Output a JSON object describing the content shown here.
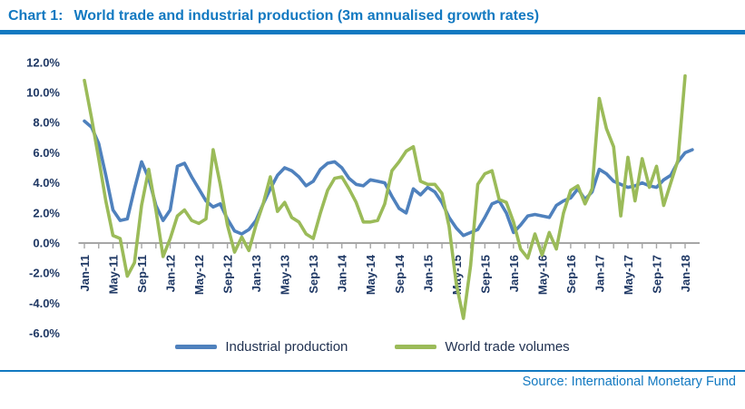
{
  "header": {
    "chart_label": "Chart 1:",
    "title": "World trade and industrial production (3m annualised growth rates)"
  },
  "source": {
    "text": "Source: International Monetary Fund"
  },
  "colors": {
    "accent_blue": "#1279C1",
    "axis_text": "#1F3864",
    "axis_line": "#A6A6A6",
    "industrial_production_line": "#4F81BD",
    "world_trade_line": "#9BBB59"
  },
  "chart_data": {
    "type": "line",
    "title": "World trade and industrial production (3m annualised growth rates)",
    "grid": false,
    "legend_position": "bottom",
    "x": [
      "Jan-11",
      "Feb-11",
      "Mar-11",
      "Apr-11",
      "May-11",
      "Jun-11",
      "Jul-11",
      "Aug-11",
      "Sep-11",
      "Oct-11",
      "Nov-11",
      "Dec-11",
      "Jan-12",
      "Feb-12",
      "Mar-12",
      "Apr-12",
      "May-12",
      "Jun-12",
      "Jul-12",
      "Aug-12",
      "Sep-12",
      "Oct-12",
      "Nov-12",
      "Dec-12",
      "Jan-13",
      "Feb-13",
      "Mar-13",
      "Apr-13",
      "May-13",
      "Jun-13",
      "Jul-13",
      "Aug-13",
      "Sep-13",
      "Oct-13",
      "Nov-13",
      "Dec-13",
      "Jan-14",
      "Feb-14",
      "Mar-14",
      "Apr-14",
      "May-14",
      "Jun-14",
      "Jul-14",
      "Aug-14",
      "Sep-14",
      "Oct-14",
      "Nov-14",
      "Dec-14",
      "Jan-15",
      "Feb-15",
      "Mar-15",
      "Apr-15",
      "May-15",
      "Jun-15",
      "Jul-15",
      "Aug-15",
      "Sep-15",
      "Oct-15",
      "Nov-15",
      "Dec-15",
      "Jan-16",
      "Feb-16",
      "Mar-16",
      "Apr-16",
      "May-16",
      "Jun-16",
      "Jul-16",
      "Aug-16",
      "Sep-16",
      "Oct-16",
      "Nov-16",
      "Dec-16",
      "Jan-17",
      "Feb-17",
      "Mar-17",
      "Apr-17",
      "May-17",
      "Jun-17",
      "Jul-17",
      "Aug-17",
      "Sep-17",
      "Oct-17",
      "Nov-17",
      "Dec-17",
      "Jan-18",
      "Feb-18"
    ],
    "x_tick_labels": [
      "Jan-11",
      "May-11",
      "Sep-11",
      "Jan-12",
      "May-12",
      "Sep-12",
      "Jan-13",
      "May-13",
      "Sep-13",
      "Jan-14",
      "May-14",
      "Sep-14",
      "Jan-15",
      "May-15",
      "Sep-15",
      "Jan-16",
      "May-16",
      "Sep-16",
      "Jan-17",
      "May-17",
      "Sep-17",
      "Jan-18"
    ],
    "y_axis": {
      "min": -6,
      "max": 12,
      "step": 2,
      "unit": "%",
      "tick_labels": [
        "12.0%",
        "10.0%",
        "8.0%",
        "6.0%",
        "4.0%",
        "2.0%",
        "0.0%",
        "-2.0%",
        "-4.0%",
        "-6.0%"
      ]
    },
    "series": [
      {
        "name": "Industrial production",
        "color": "#4F81BD",
        "values": [
          8.1,
          7.7,
          6.6,
          4.5,
          2.2,
          1.5,
          1.6,
          3.6,
          5.4,
          4.3,
          2.5,
          1.5,
          2.2,
          5.1,
          5.3,
          4.4,
          3.6,
          2.8,
          2.4,
          2.6,
          1.6,
          0.8,
          0.6,
          0.9,
          1.5,
          2.6,
          3.6,
          4.5,
          5.0,
          4.8,
          4.4,
          3.8,
          4.1,
          4.9,
          5.3,
          5.4,
          5.0,
          4.3,
          3.9,
          3.8,
          4.2,
          4.1,
          4.0,
          3.1,
          2.3,
          2.0,
          3.6,
          3.2,
          3.7,
          3.4,
          2.7,
          1.7,
          1.0,
          0.5,
          0.7,
          0.9,
          1.7,
          2.6,
          2.8,
          2.0,
          0.7,
          1.2,
          1.8,
          1.9,
          1.8,
          1.7,
          2.5,
          2.8,
          3.0,
          3.6,
          2.9,
          3.4,
          4.9,
          4.6,
          4.1,
          3.9,
          3.7,
          3.8,
          4.0,
          3.8,
          3.7,
          4.2,
          4.5,
          5.4,
          6.0,
          6.2
        ]
      },
      {
        "name": "World trade volumes",
        "color": "#9BBB59",
        "values": [
          10.8,
          8.3,
          5.6,
          2.8,
          0.5,
          0.3,
          -2.2,
          -1.3,
          2.5,
          4.9,
          2.2,
          -0.9,
          0.3,
          1.8,
          2.2,
          1.5,
          1.3,
          1.6,
          6.2,
          3.9,
          1.2,
          -0.6,
          0.4,
          -0.5,
          1.2,
          2.6,
          4.4,
          2.1,
          2.7,
          1.7,
          1.4,
          0.6,
          0.3,
          2.0,
          3.5,
          4.3,
          4.4,
          3.6,
          2.7,
          1.4,
          1.4,
          1.5,
          2.6,
          4.8,
          5.4,
          6.1,
          6.4,
          4.1,
          3.9,
          3.9,
          3.3,
          1.1,
          -2.7,
          -5.0,
          -1.5,
          3.9,
          4.6,
          4.8,
          2.9,
          2.7,
          1.4,
          -0.4,
          -1.0,
          0.6,
          -0.8,
          0.7,
          -0.4,
          2.0,
          3.5,
          3.8,
          2.6,
          3.6,
          9.6,
          7.6,
          6.4,
          1.8,
          5.7,
          2.8,
          5.6,
          3.7,
          5.1,
          2.5,
          4.0,
          5.5,
          11.1,
          null
        ]
      }
    ]
  }
}
